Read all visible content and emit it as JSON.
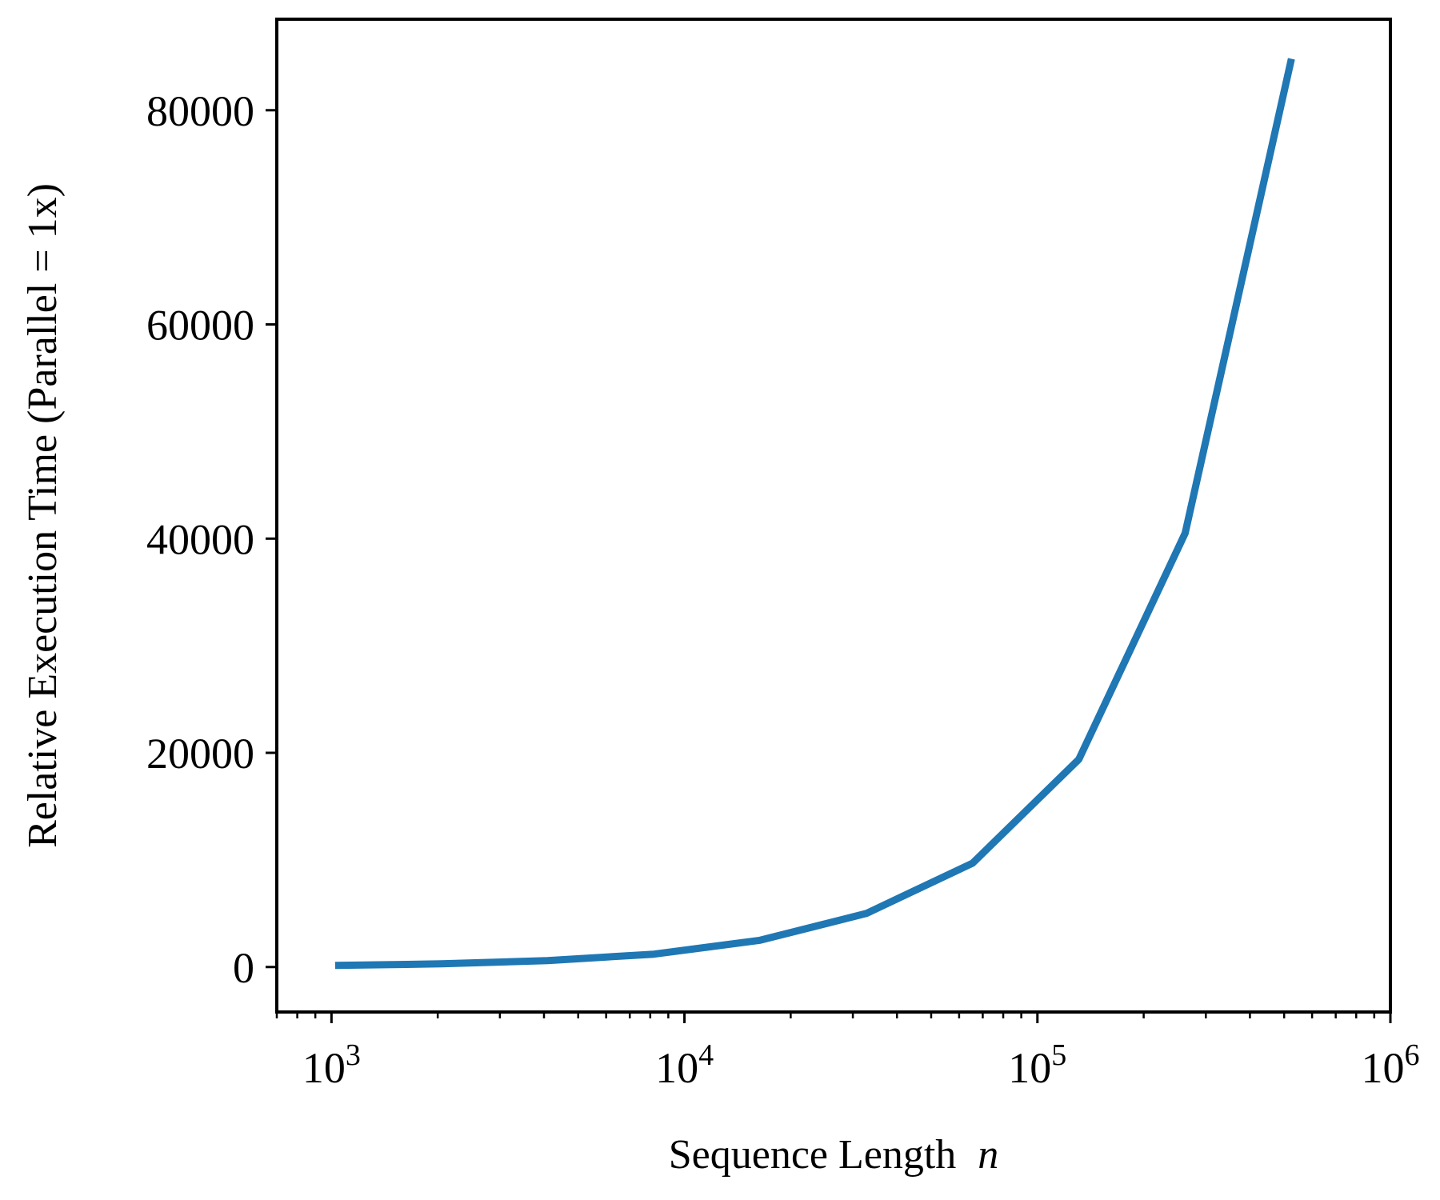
{
  "chart_data": {
    "type": "line",
    "title": "",
    "xlabel": "Sequence Length",
    "xlabel_var": "n",
    "ylabel": "Relative Execution Time (Parallel = 1x)",
    "xscale": "log",
    "xlim": [
      700,
      1000000
    ],
    "ylim": [
      -4200,
      88500
    ],
    "grid": false,
    "legend": "none",
    "colors": {
      "series": "#1f77b4",
      "axes": "#000000"
    },
    "x_ticks": [
      {
        "value": 1000,
        "base": "10",
        "exp": "3"
      },
      {
        "value": 10000,
        "base": "10",
        "exp": "4"
      },
      {
        "value": 100000,
        "base": "10",
        "exp": "5"
      },
      {
        "value": 1000000,
        "base": "10",
        "exp": "6"
      }
    ],
    "y_ticks": [
      {
        "value": 0,
        "label": "0"
      },
      {
        "value": 20000,
        "label": "20000"
      },
      {
        "value": 40000,
        "label": "40000"
      },
      {
        "value": 60000,
        "label": "60000"
      },
      {
        "value": 80000,
        "label": "80000"
      }
    ],
    "series": [
      {
        "x": [
          1024,
          2048,
          4096,
          8192,
          16384,
          32768,
          65536,
          131072,
          262144,
          524288
        ],
        "y": [
          150,
          300,
          600,
          1200,
          2500,
          5000,
          9700,
          19400,
          40500,
          84800
        ]
      }
    ]
  }
}
